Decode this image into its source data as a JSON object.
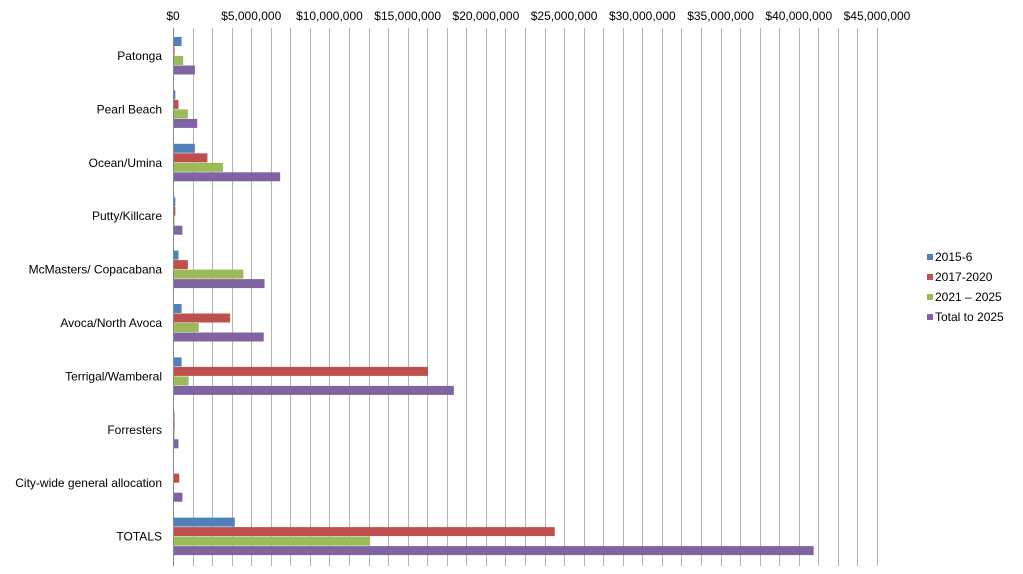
{
  "chart_data": {
    "type": "bar",
    "orientation": "horizontal",
    "title": "",
    "xlabel": "",
    "ylabel": "",
    "xlim": [
      0,
      45000000
    ],
    "x_tick_step": 5000000,
    "x_axis_position": "top",
    "grid": true,
    "legend_position": "right",
    "tick_labels": [
      "$0",
      "$5,000,000",
      "$10,000,000",
      "$15,000,000",
      "$20,000,000",
      "$25,000,000",
      "$30,000,000",
      "$35,000,000",
      "$40,000,000",
      "$45,000,000"
    ],
    "categories": [
      "Patonga",
      "Pearl Beach",
      "Ocean/Umina",
      "Putty/Killcare",
      "McMasters/ Copacabana",
      "Avoca/North Avoca",
      "Terrigal/Wamberal",
      "Forresters",
      "City-wide general allocation",
      "TOTALS"
    ],
    "series": [
      {
        "name": "2015-6",
        "color": "#4f81bd",
        "values": [
          550000,
          150000,
          1400000,
          150000,
          350000,
          550000,
          550000,
          50000,
          0,
          3950000
        ]
      },
      {
        "name": "2017-2020",
        "color": "#c0504d",
        "values": [
          100000,
          350000,
          2200000,
          150000,
          950000,
          3650000,
          16300000,
          100000,
          400000,
          24400000
        ]
      },
      {
        "name": "2021 – 2025",
        "color": "#9bbb59",
        "values": [
          650000,
          950000,
          3200000,
          100000,
          4500000,
          1650000,
          1000000,
          100000,
          0,
          12600000
        ]
      },
      {
        "name": "Total to 2025",
        "color": "#8064a2",
        "values": [
          1400000,
          1550000,
          6850000,
          600000,
          5850000,
          5800000,
          17950000,
          350000,
          600000,
          40950000
        ]
      }
    ]
  }
}
